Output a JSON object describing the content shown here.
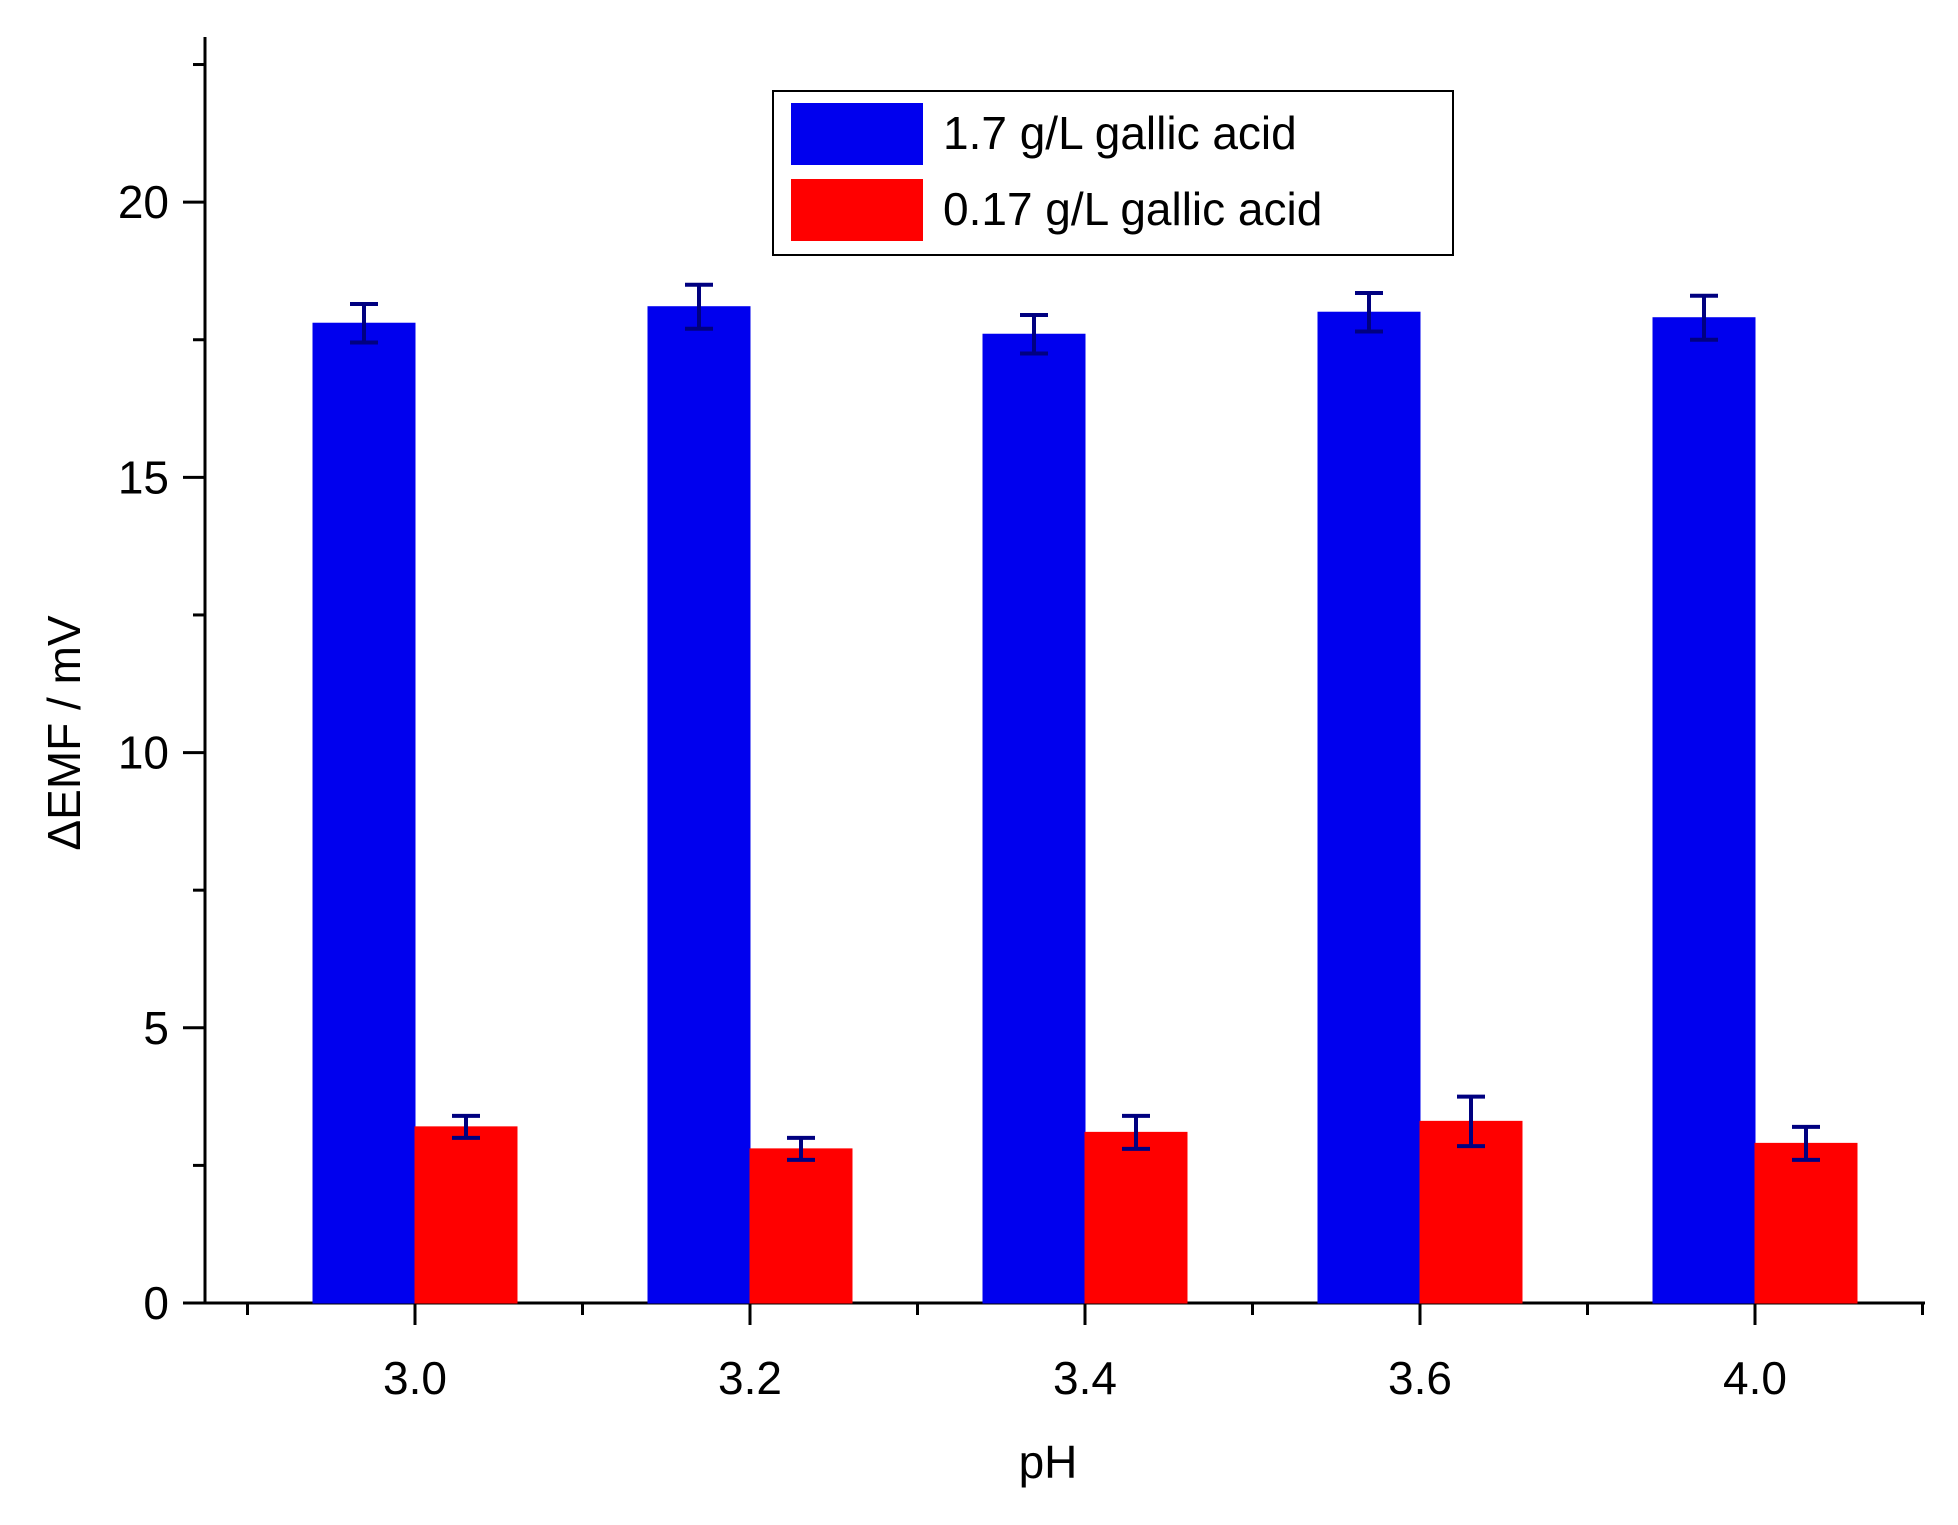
{
  "chart_data": {
    "type": "bar",
    "title": "",
    "xlabel": "pH",
    "ylabel": "ΔEMF / mV",
    "categories": [
      "3.0",
      "3.2",
      "3.4",
      "3.6",
      "4.0"
    ],
    "ylim": [
      0,
      23
    ],
    "yticks": [
      0,
      5,
      10,
      15,
      20
    ],
    "grid": false,
    "legend_position": "top-center",
    "series": [
      {
        "name": "1.7 g/L gallic acid",
        "color": "#0000ee",
        "values": [
          17.8,
          18.1,
          17.6,
          18.0,
          17.9
        ],
        "errors": [
          0.35,
          0.4,
          0.35,
          0.35,
          0.4
        ]
      },
      {
        "name": "0.17 g/L gallic acid",
        "color": "#ff0000",
        "values": [
          3.2,
          2.8,
          3.1,
          3.3,
          2.9
        ],
        "errors": [
          0.2,
          0.2,
          0.3,
          0.45,
          0.3
        ]
      }
    ],
    "error_bar_color": "#000080"
  }
}
